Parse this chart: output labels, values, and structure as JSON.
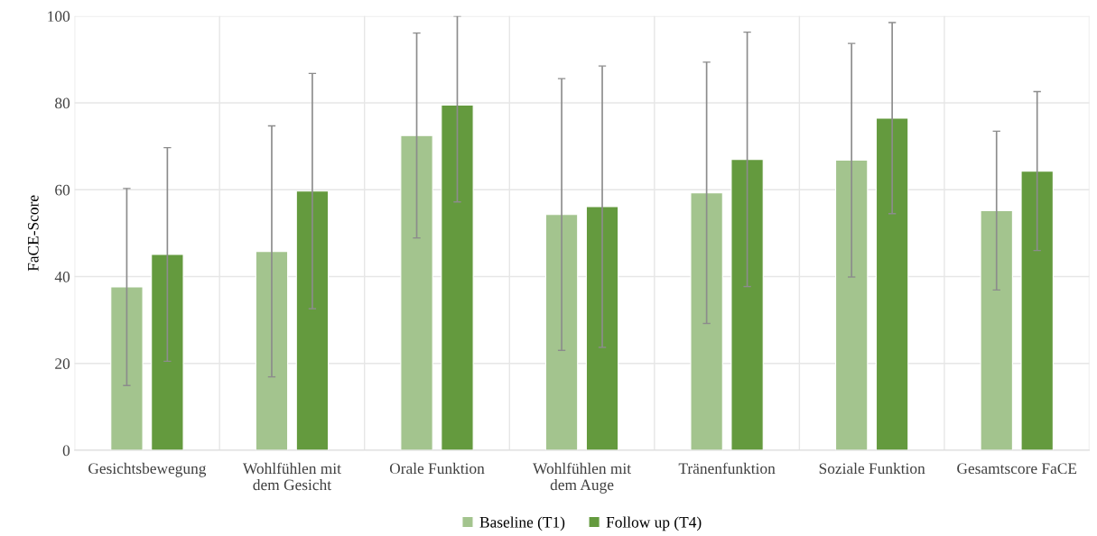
{
  "chart_data": {
    "type": "bar",
    "ylabel": "FaCE-Score",
    "categories": [
      "Gesichtsbewegung",
      "Wohlfühlen mit\ndem Gesicht",
      "Orale Funktion",
      "Wohlfühlen mit\ndem Auge",
      "Tränenfunktion",
      "Soziale Funktion",
      "Gesamtscore FaCE"
    ],
    "series": [
      {
        "name": "Baseline (T1)",
        "color": "#a3c48e",
        "values": [
          37.6,
          45.8,
          72.5,
          54.3,
          59.3,
          66.8,
          55.2
        ],
        "errors": [
          22.7,
          28.9,
          23.6,
          31.3,
          30.1,
          26.9,
          18.3
        ]
      },
      {
        "name": "Follow up (T4)",
        "color": "#649a3e",
        "values": [
          45.1,
          59.7,
          79.5,
          56.1,
          67.0,
          76.5,
          64.3
        ],
        "errors": [
          24.6,
          27.1,
          [
            57.2,
            100
          ],
          32.4,
          29.3,
          22.0,
          18.3
        ]
      }
    ],
    "ylim": [
      0,
      100
    ],
    "yticks": [
      0,
      20,
      40,
      60,
      80,
      100
    ],
    "grid": true,
    "legend": "bottom"
  }
}
